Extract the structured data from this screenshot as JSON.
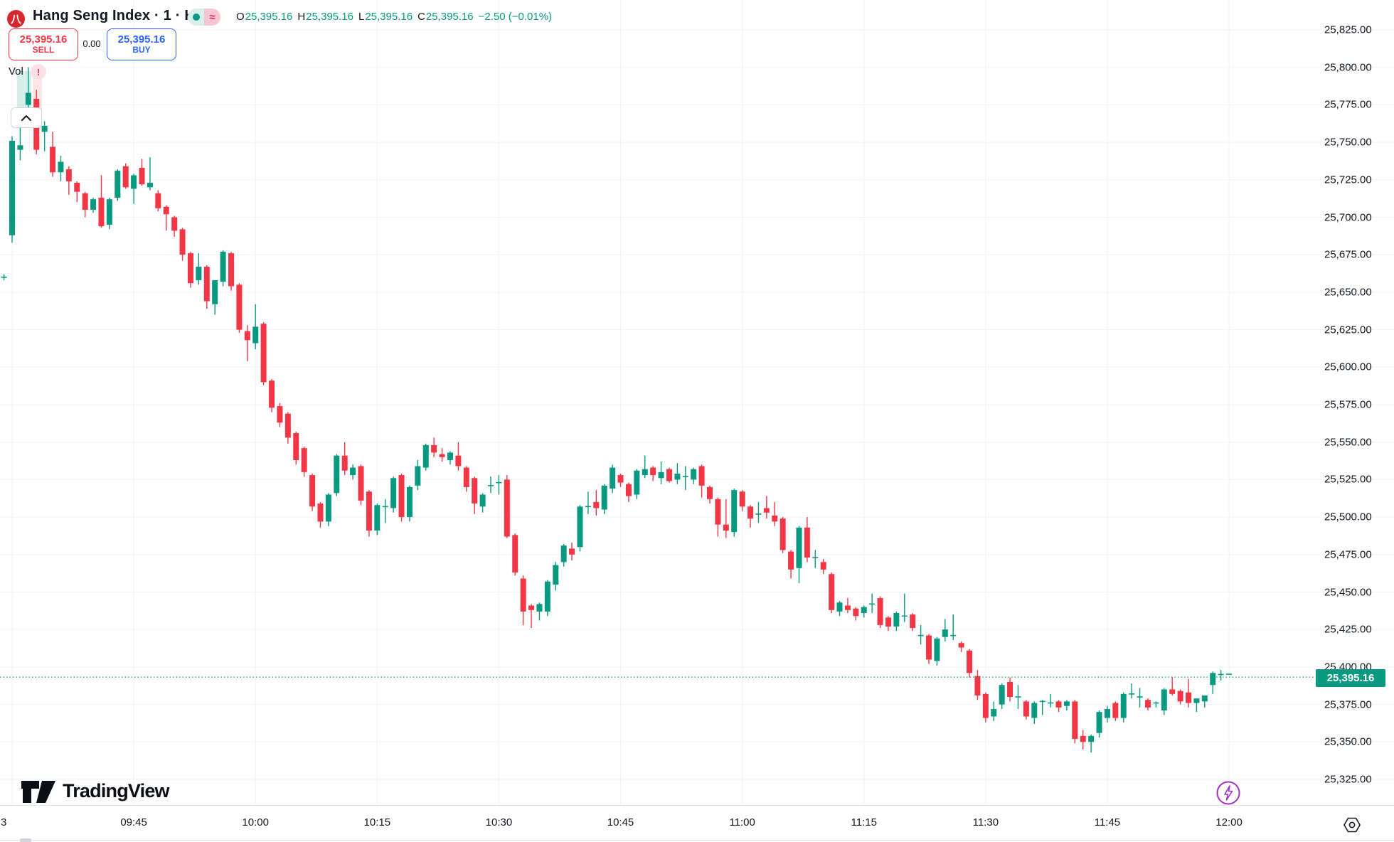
{
  "header": {
    "symbol_title": "Hang Seng Index · 1 · HSI",
    "logo_glyph": "八",
    "approx_glyph": "≈",
    "ohlc": {
      "o_label": "O",
      "o_value": "25,395.16",
      "h_label": "H",
      "h_value": "25,395.16",
      "l_label": "L",
      "l_value": "25,395.16",
      "c_label": "C",
      "c_value": "25,395.16",
      "change": "−2.50 (−0.01%)"
    }
  },
  "trade_panel": {
    "sell_price": "25,395.16",
    "sell_label": "SELL",
    "spread": "0.00",
    "buy_price": "25,395.16",
    "buy_label": "BUY"
  },
  "volume_row": {
    "label": "Vol",
    "warning_glyph": "!"
  },
  "current_price": {
    "value": "25,395.16"
  },
  "branding": {
    "name": "TradingView"
  },
  "price_axis": {
    "labels": [
      {
        "text": "25,825.00",
        "p": 25825
      },
      {
        "text": "25,800.00",
        "p": 25800
      },
      {
        "text": "25,775.00",
        "p": 25775
      },
      {
        "text": "25,750.00",
        "p": 25750
      },
      {
        "text": "25,725.00",
        "p": 25725
      },
      {
        "text": "25,700.00",
        "p": 25700
      },
      {
        "text": "25,675.00",
        "p": 25675
      },
      {
        "text": "25,650.00",
        "p": 25650
      },
      {
        "text": "25,625.00",
        "p": 25625
      },
      {
        "text": "25,600.00",
        "p": 25600
      },
      {
        "text": "25,575.00",
        "p": 25575
      },
      {
        "text": "25,550.00",
        "p": 25550
      },
      {
        "text": "25,525.00",
        "p": 25525
      },
      {
        "text": "25,500.00",
        "p": 25500
      },
      {
        "text": "25,475.00",
        "p": 25475
      },
      {
        "text": "25,450.00",
        "p": 25450
      },
      {
        "text": "25,425.00",
        "p": 25425
      },
      {
        "text": "25,400.00",
        "p": 25400
      },
      {
        "text": "25,375.00",
        "p": 25375
      },
      {
        "text": "25,350.00",
        "p": 25350
      },
      {
        "text": "25,325.00",
        "p": 25325
      }
    ]
  },
  "time_axis": {
    "partial_left": "3",
    "labels": [
      {
        "text": "09:45",
        "m": 15
      },
      {
        "text": "10:00",
        "m": 30
      },
      {
        "text": "10:15",
        "m": 45
      },
      {
        "text": "10:30",
        "m": 60
      },
      {
        "text": "10:45",
        "m": 75
      },
      {
        "text": "11:00",
        "m": 90
      },
      {
        "text": "11:15",
        "m": 105
      },
      {
        "text": "11:30",
        "m": 120
      },
      {
        "text": "11:45",
        "m": 135
      },
      {
        "text": "12:00",
        "m": 150
      }
    ],
    "gridline_minutes": [
      0,
      15,
      30,
      45,
      60,
      75,
      90,
      105,
      120,
      135,
      150
    ]
  },
  "chart_data": {
    "type": "candlestick",
    "title": "Hang Seng Index",
    "symbol": "HSI",
    "interval": "1 minute",
    "session": "09:30–12:00",
    "up_color": "#089981",
    "down_color": "#f23645",
    "grid": true,
    "ylim": [
      25318,
      25845
    ],
    "last_price": 25395.16,
    "last_change": -2.5,
    "last_change_pct": -0.01,
    "columns": [
      "minutes_since_0930",
      "open",
      "high",
      "low",
      "close"
    ],
    "candles": [
      [
        -1,
        25660,
        25662,
        25658,
        25660
      ],
      [
        0,
        25688,
        25754,
        25683,
        25751
      ],
      [
        1,
        25745,
        25761,
        25738,
        25748
      ],
      [
        2,
        25775,
        25800,
        25770,
        25783
      ],
      [
        3,
        25779,
        25785,
        25742,
        25745
      ],
      [
        4,
        25757,
        25764,
        25744,
        25761
      ],
      [
        5,
        25747,
        25757,
        25727,
        25730
      ],
      [
        6,
        25730,
        25741,
        25724,
        25737
      ],
      [
        7,
        25732,
        25734,
        25715,
        25724
      ],
      [
        8,
        25723,
        25724,
        25710,
        25717
      ],
      [
        9,
        25716,
        25717,
        25700,
        25705
      ],
      [
        10,
        25705,
        25713,
        25703,
        25712
      ],
      [
        11,
        25713,
        25728,
        25693,
        25694
      ],
      [
        12,
        25695,
        25713,
        25692,
        25712
      ],
      [
        13,
        25713,
        25732,
        25711,
        25731
      ],
      [
        14,
        25734,
        25736,
        25719,
        25720
      ],
      [
        15,
        25719,
        25729,
        25709,
        25728
      ],
      [
        16,
        25733,
        25739,
        25721,
        25722
      ],
      [
        17,
        25720,
        25740,
        25718,
        25723
      ],
      [
        18,
        25716,
        25718,
        25704,
        25706
      ],
      [
        19,
        25707,
        25708,
        25691,
        25702
      ],
      [
        20,
        25700,
        25701,
        25687,
        25691
      ],
      [
        21,
        25692,
        25693,
        25671,
        25675
      ],
      [
        22,
        25676,
        25677,
        25653,
        25656
      ],
      [
        23,
        25658,
        25676,
        25655,
        25667
      ],
      [
        24,
        25667,
        25668,
        25639,
        25644
      ],
      [
        25,
        25642,
        25658,
        25635,
        25658
      ],
      [
        26,
        25657,
        25678,
        25654,
        25677
      ],
      [
        27,
        25676,
        25677,
        25651,
        25654
      ],
      [
        28,
        25655,
        25656,
        25623,
        25625
      ],
      [
        29,
        25624,
        25628,
        25604,
        25618
      ],
      [
        30,
        25616,
        25642,
        25612,
        25627
      ],
      [
        31,
        25629,
        25630,
        25588,
        25590
      ],
      [
        32,
        25591,
        25592,
        25570,
        25573
      ],
      [
        33,
        25574,
        25576,
        25560,
        25563
      ],
      [
        34,
        25569,
        25570,
        25549,
        25553
      ],
      [
        35,
        25556,
        25557,
        25535,
        25538
      ],
      [
        36,
        25546,
        25547,
        25527,
        25530
      ],
      [
        37,
        25528,
        25529,
        25504,
        25507
      ],
      [
        38,
        25509,
        25510,
        25493,
        25497
      ],
      [
        39,
        25497,
        25516,
        25494,
        25515
      ],
      [
        40,
        25516,
        25542,
        25514,
        25541
      ],
      [
        41,
        25541,
        25550,
        25528,
        25531
      ],
      [
        42,
        25528,
        25535,
        25525,
        25533
      ],
      [
        43,
        25534,
        25535,
        25508,
        25511
      ],
      [
        44,
        25517,
        25518,
        25487,
        25491
      ],
      [
        45,
        25491,
        25509,
        25488,
        25508
      ],
      [
        46,
        25507,
        25512,
        25496,
        25507
      ],
      [
        47,
        25506,
        25527,
        25503,
        25526
      ],
      [
        48,
        25528,
        25529,
        25497,
        25500
      ],
      [
        49,
        25500,
        25521,
        25497,
        25520
      ],
      [
        50,
        25521,
        25538,
        25518,
        25534
      ],
      [
        51,
        25533,
        25549,
        25531,
        25548
      ],
      [
        52,
        25548,
        25553,
        25540,
        25543
      ],
      [
        53,
        25542,
        25546,
        25537,
        25540
      ],
      [
        54,
        25538,
        25544,
        25535,
        25543
      ],
      [
        55,
        25541,
        25550,
        25531,
        25534
      ],
      [
        56,
        25533,
        25534,
        25517,
        25520
      ],
      [
        57,
        25526,
        25527,
        25502,
        25509
      ],
      [
        58,
        25507,
        25516,
        25503,
        25515
      ],
      [
        59,
        25521,
        25527,
        25516,
        25521
      ],
      [
        60,
        25523,
        25528,
        25515,
        25523
      ],
      [
        61,
        25525,
        25528,
        25486,
        25487
      ],
      [
        62,
        25488,
        25489,
        25461,
        25463
      ],
      [
        63,
        25459,
        25461,
        25428,
        25437
      ],
      [
        64,
        25441,
        25442,
        25426,
        25438
      ],
      [
        65,
        25437,
        25443,
        25431,
        25442
      ],
      [
        66,
        25437,
        25458,
        25434,
        25457
      ],
      [
        67,
        25455,
        25470,
        25451,
        25468
      ],
      [
        68,
        25470,
        25482,
        25467,
        25481
      ],
      [
        69,
        25479,
        25483,
        25471,
        25475
      ],
      [
        70,
        25480,
        25508,
        25477,
        25507
      ],
      [
        71,
        25507,
        25517,
        25502,
        25507
      ],
      [
        72,
        25510,
        25518,
        25501,
        25506
      ],
      [
        73,
        25505,
        25522,
        25502,
        25521
      ],
      [
        74,
        25519,
        25535,
        25516,
        25533
      ],
      [
        75,
        25528,
        25529,
        25520,
        25523
      ],
      [
        76,
        25522,
        25523,
        25510,
        25514
      ],
      [
        77,
        25515,
        25532,
        25512,
        25531
      ],
      [
        78,
        25528,
        25541,
        25526,
        25532
      ],
      [
        79,
        25533,
        25534,
        25524,
        25528
      ],
      [
        80,
        25526,
        25537,
        25522,
        25530
      ],
      [
        81,
        25532,
        25533,
        25523,
        25524
      ],
      [
        82,
        25525,
        25536,
        25522,
        25529
      ],
      [
        83,
        25527,
        25534,
        25518,
        25527
      ],
      [
        84,
        25525,
        25533,
        25522,
        25532
      ],
      [
        85,
        25534,
        25535,
        25513,
        25521
      ],
      [
        86,
        25520,
        25521,
        25509,
        25512
      ],
      [
        87,
        25512,
        25513,
        25487,
        25495
      ],
      [
        88,
        25495,
        25512,
        25486,
        25491
      ],
      [
        89,
        25490,
        25519,
        25487,
        25518
      ],
      [
        90,
        25517,
        25518,
        25504,
        25507
      ],
      [
        91,
        25507,
        25508,
        25493,
        25499
      ],
      [
        92,
        25502,
        25510,
        25496,
        25502
      ],
      [
        93,
        25506,
        25514,
        25499,
        25503
      ],
      [
        94,
        25501,
        25510,
        25494,
        25497
      ],
      [
        95,
        25499,
        25500,
        25476,
        25478
      ],
      [
        96,
        25477,
        25478,
        25459,
        25465
      ],
      [
        97,
        25466,
        25494,
        25456,
        25493
      ],
      [
        98,
        25493,
        25500,
        25470,
        25473
      ],
      [
        99,
        25473,
        25478,
        25466,
        25473
      ],
      [
        100,
        25470,
        25472,
        25462,
        25465
      ],
      [
        101,
        25462,
        25463,
        25436,
        25438
      ],
      [
        102,
        25437,
        25444,
        25434,
        25443
      ],
      [
        103,
        25441,
        25446,
        25436,
        25438
      ],
      [
        104,
        25439,
        25440,
        25431,
        25434
      ],
      [
        105,
        25436,
        25441,
        25433,
        25440
      ],
      [
        106,
        25442,
        25449,
        25436,
        25442
      ],
      [
        107,
        25446,
        25447,
        25426,
        25428
      ],
      [
        108,
        25433,
        25434,
        25424,
        25427
      ],
      [
        109,
        25427,
        25437,
        25424,
        25436
      ],
      [
        110,
        25434,
        25449,
        25430,
        25434
      ],
      [
        111,
        25435,
        25436,
        25424,
        25426
      ],
      [
        112,
        25421,
        25428,
        25415,
        25421
      ],
      [
        113,
        25421,
        25422,
        25402,
        25405
      ],
      [
        114,
        25404,
        25420,
        25401,
        25419
      ],
      [
        115,
        25420,
        25432,
        25417,
        25425
      ],
      [
        116,
        25421,
        25435,
        25418,
        25421
      ],
      [
        117,
        25416,
        25417,
        25410,
        25413
      ],
      [
        118,
        25411,
        25412,
        25393,
        25396
      ],
      [
        119,
        25394,
        25398,
        25378,
        25381
      ],
      [
        120,
        25382,
        25383,
        25363,
        25366
      ],
      [
        121,
        25367,
        25377,
        25364,
        25372
      ],
      [
        122,
        25375,
        25389,
        25372,
        25388
      ],
      [
        123,
        25390,
        25393,
        25377,
        25380
      ],
      [
        124,
        25380,
        25388,
        25372,
        25380
      ],
      [
        125,
        25377,
        25378,
        25365,
        25367
      ],
      [
        126,
        25366,
        25377,
        25362,
        25376
      ],
      [
        127,
        25377,
        25378,
        25368,
        25377
      ],
      [
        128,
        25376,
        25382,
        25373,
        25376
      ],
      [
        129,
        25377,
        25378,
        25370,
        25373
      ],
      [
        130,
        25374,
        25378,
        25371,
        25377
      ],
      [
        131,
        25377,
        25378,
        25349,
        25352
      ],
      [
        132,
        25354,
        25358,
        25345,
        25350
      ],
      [
        133,
        25350,
        25355,
        25343,
        25354
      ],
      [
        134,
        25356,
        25371,
        25353,
        25370
      ],
      [
        135,
        25366,
        25374,
        25363,
        25372
      ],
      [
        136,
        25376,
        25377,
        25364,
        25366
      ],
      [
        137,
        25366,
        25383,
        25363,
        25382
      ],
      [
        138,
        25382,
        25389,
        25379,
        25382
      ],
      [
        139,
        25380,
        25386,
        25373,
        25380
      ],
      [
        140,
        25378,
        25379,
        25371,
        25373
      ],
      [
        141,
        25376,
        25377,
        25373,
        25376
      ],
      [
        142,
        25371,
        25386,
        25368,
        25385
      ],
      [
        143,
        25385,
        25393,
        25381,
        25382
      ],
      [
        144,
        25384,
        25385,
        25375,
        25377
      ],
      [
        145,
        25383,
        25392,
        25373,
        25376
      ],
      [
        146,
        25376,
        25379,
        25370,
        25379
      ],
      [
        147,
        25377,
        25381,
        25373,
        25381
      ],
      [
        148,
        25388,
        25397,
        25382,
        25396
      ],
      [
        149,
        25395,
        25398,
        25391,
        25395
      ],
      [
        150,
        25395.16,
        25395.16,
        25395.16,
        25395.16
      ]
    ]
  }
}
